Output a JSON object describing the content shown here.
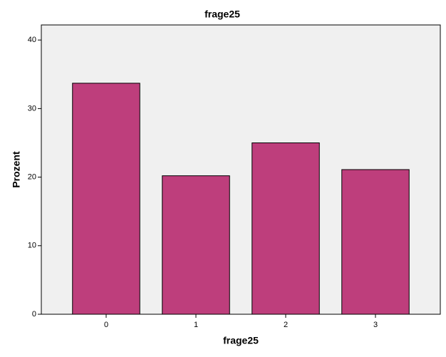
{
  "chart_data": {
    "type": "bar",
    "title": "frage25",
    "x_label": "frage25",
    "y_label": "Prozent",
    "categories": [
      "0",
      "1",
      "2",
      "3"
    ],
    "values": [
      33.7,
      20.2,
      25.0,
      21.1
    ],
    "color": "#be3e7c",
    "ylim": [
      0,
      42.2
    ],
    "yticks": [
      0,
      10,
      20,
      30,
      40
    ],
    "grid": false
  }
}
